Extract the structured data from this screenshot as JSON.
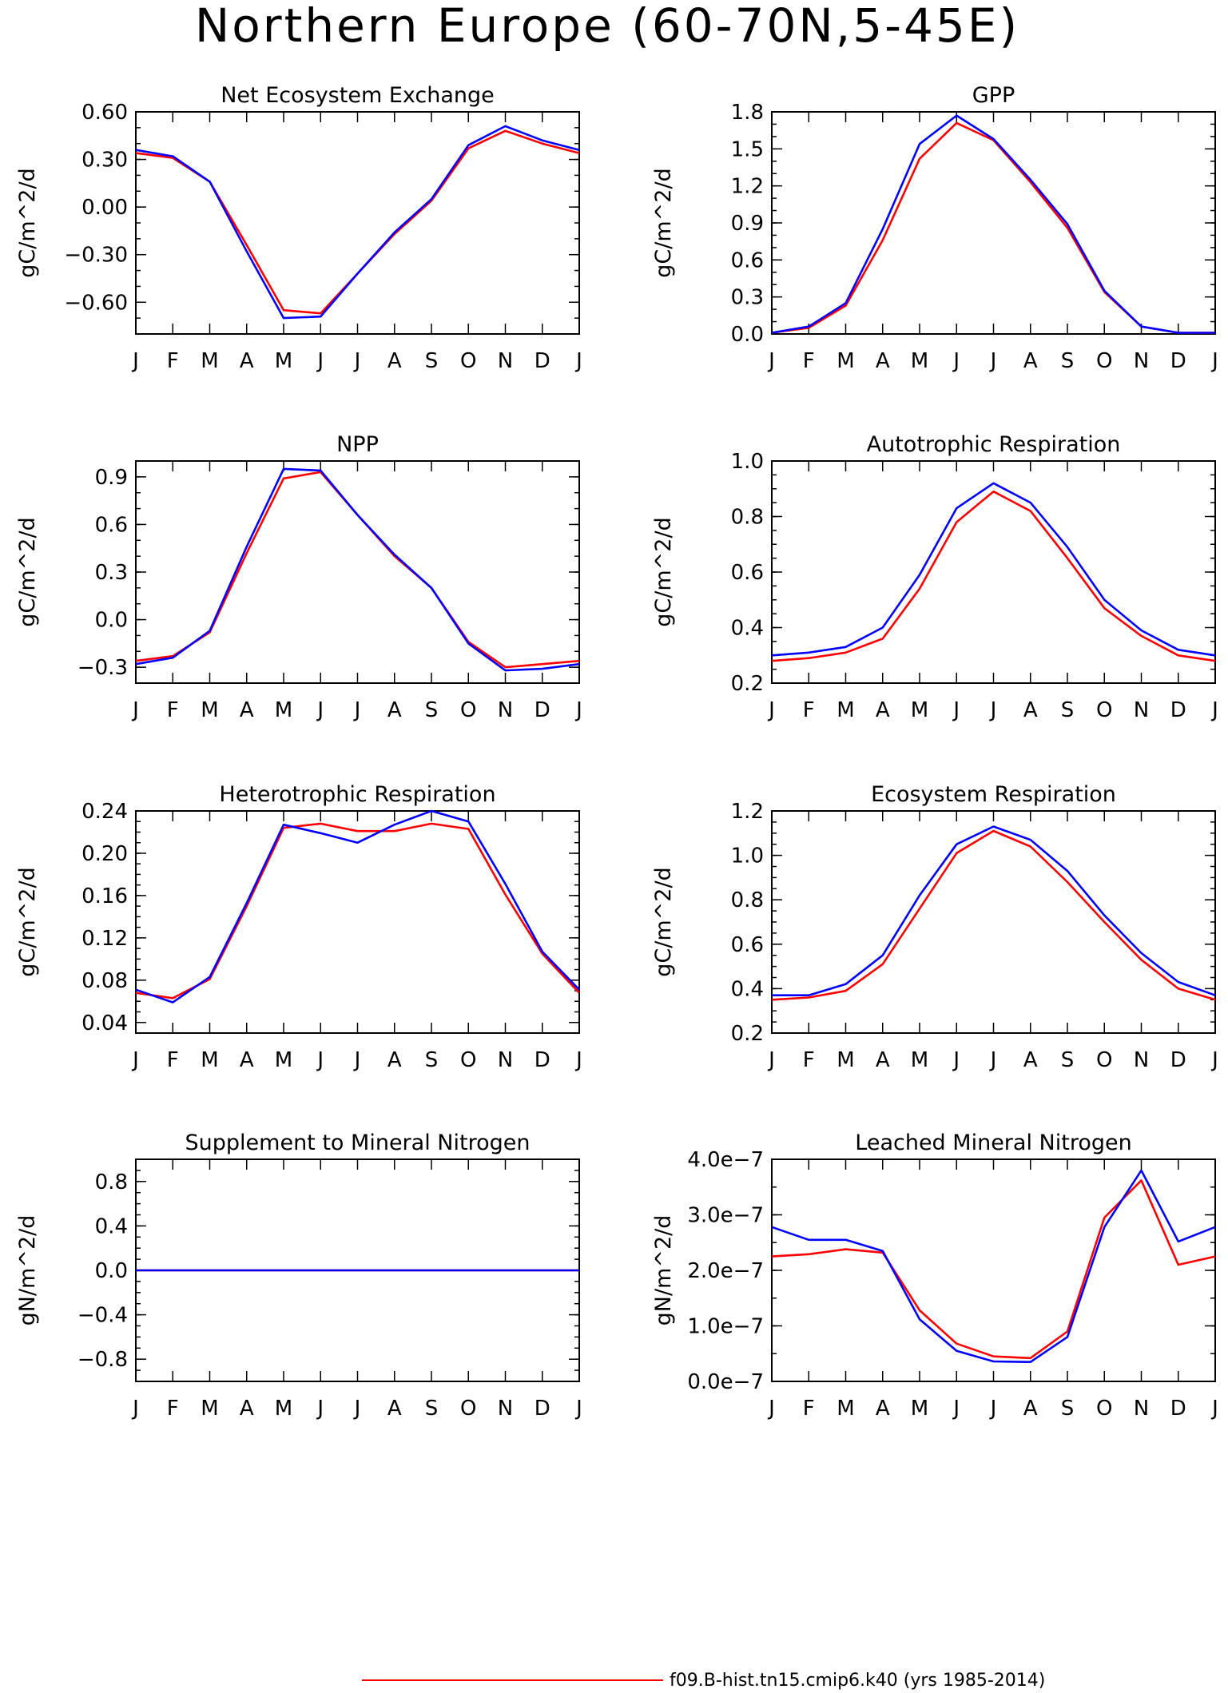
{
  "page_title": "Northern Europe (60-70N,5-45E)",
  "legend": {
    "red_label": "f09.B-hist.tn15.cmip6.k40 (yrs 1985-2014)",
    "red_color": "#ff0000",
    "blue_color": "#0000ff"
  },
  "chart_data": [
    {
      "type": "line",
      "title": "Net Ecosystem Exchange",
      "ylabel": "gC/m^2/d",
      "categories": [
        "J",
        "F",
        "M",
        "A",
        "M",
        "J",
        "J",
        "A",
        "S",
        "O",
        "N",
        "D",
        "J"
      ],
      "ylim": [
        -0.8,
        0.6
      ],
      "yticks": [
        -0.6,
        -0.3,
        0.0,
        0.3,
        0.6
      ],
      "yticklabels": [
        "−0.60",
        "−0.30",
        "0.00",
        "0.30",
        "0.60"
      ],
      "minor_step": 0.1,
      "series": [
        {
          "color": "#ff0000",
          "values": [
            0.34,
            0.31,
            0.16,
            -0.24,
            -0.65,
            -0.67,
            -0.42,
            -0.17,
            0.04,
            0.37,
            0.48,
            0.4,
            0.34
          ]
        },
        {
          "color": "#0000ff",
          "values": [
            0.36,
            0.32,
            0.16,
            -0.28,
            -0.7,
            -0.69,
            -0.42,
            -0.16,
            0.05,
            0.39,
            0.51,
            0.42,
            0.36
          ]
        }
      ]
    },
    {
      "type": "line",
      "title": "GPP",
      "ylabel": "gC/m^2/d",
      "categories": [
        "J",
        "F",
        "M",
        "A",
        "M",
        "J",
        "J",
        "A",
        "S",
        "O",
        "N",
        "D",
        "J"
      ],
      "ylim": [
        0.0,
        1.8
      ],
      "yticks": [
        0.0,
        0.3,
        0.6,
        0.9,
        1.2,
        1.5,
        1.8
      ],
      "yticklabels": [
        "0.0",
        "0.3",
        "0.6",
        "0.9",
        "1.2",
        "1.5",
        "1.8"
      ],
      "minor_step": 0.1,
      "series": [
        {
          "color": "#ff0000",
          "values": [
            0.01,
            0.05,
            0.23,
            0.76,
            1.42,
            1.71,
            1.57,
            1.23,
            0.86,
            0.34,
            0.06,
            0.01,
            0.01
          ]
        },
        {
          "color": "#0000ff",
          "values": [
            0.01,
            0.06,
            0.25,
            0.85,
            1.54,
            1.77,
            1.58,
            1.25,
            0.89,
            0.35,
            0.06,
            0.01,
            0.01
          ]
        }
      ]
    },
    {
      "type": "line",
      "title": "NPP",
      "ylabel": "gC/m^2/d",
      "categories": [
        "J",
        "F",
        "M",
        "A",
        "M",
        "J",
        "J",
        "A",
        "S",
        "O",
        "N",
        "D",
        "J"
      ],
      "ylim": [
        -0.4,
        1.0
      ],
      "yticks": [
        -0.3,
        0.0,
        0.3,
        0.6,
        0.9
      ],
      "yticklabels": [
        "−0.3",
        "0.0",
        "0.3",
        "0.6",
        "0.9"
      ],
      "minor_step": 0.1,
      "series": [
        {
          "color": "#ff0000",
          "values": [
            -0.26,
            -0.23,
            -0.08,
            0.42,
            0.89,
            0.93,
            0.66,
            0.4,
            0.2,
            -0.14,
            -0.3,
            -0.28,
            -0.26
          ]
        },
        {
          "color": "#0000ff",
          "values": [
            -0.28,
            -0.24,
            -0.07,
            0.46,
            0.95,
            0.94,
            0.66,
            0.41,
            0.2,
            -0.15,
            -0.32,
            -0.31,
            -0.28
          ]
        }
      ]
    },
    {
      "type": "line",
      "title": "Autotrophic Respiration",
      "ylabel": "gC/m^2/d",
      "categories": [
        "J",
        "F",
        "M",
        "A",
        "M",
        "J",
        "J",
        "A",
        "S",
        "O",
        "N",
        "D",
        "J"
      ],
      "ylim": [
        0.2,
        1.0
      ],
      "yticks": [
        0.2,
        0.4,
        0.6,
        0.8,
        1.0
      ],
      "yticklabels": [
        "0.2",
        "0.4",
        "0.6",
        "0.8",
        "1.0"
      ],
      "minor_step": 0.05,
      "series": [
        {
          "color": "#ff0000",
          "values": [
            0.28,
            0.29,
            0.31,
            0.36,
            0.54,
            0.78,
            0.89,
            0.82,
            0.65,
            0.47,
            0.37,
            0.3,
            0.28
          ]
        },
        {
          "color": "#0000ff",
          "values": [
            0.3,
            0.31,
            0.33,
            0.4,
            0.59,
            0.83,
            0.92,
            0.85,
            0.69,
            0.5,
            0.39,
            0.32,
            0.3
          ]
        }
      ]
    },
    {
      "type": "line",
      "title": "Heterotrophic Respiration",
      "ylabel": "gC/m^2/d",
      "categories": [
        "J",
        "F",
        "M",
        "A",
        "M",
        "J",
        "J",
        "A",
        "S",
        "O",
        "N",
        "D",
        "J"
      ],
      "ylim": [
        0.03,
        0.24
      ],
      "yticks": [
        0.04,
        0.08,
        0.12,
        0.16,
        0.2,
        0.24
      ],
      "yticklabels": [
        "0.04",
        "0.08",
        "0.12",
        "0.16",
        "0.20",
        "0.24"
      ],
      "minor_step": 0.01,
      "series": [
        {
          "color": "#ff0000",
          "values": [
            0.068,
            0.063,
            0.081,
            0.15,
            0.224,
            0.228,
            0.221,
            0.221,
            0.228,
            0.223,
            0.161,
            0.105,
            0.068
          ]
        },
        {
          "color": "#0000ff",
          "values": [
            0.071,
            0.059,
            0.083,
            0.153,
            0.227,
            0.219,
            0.21,
            0.227,
            0.24,
            0.23,
            0.171,
            0.107,
            0.071
          ]
        }
      ]
    },
    {
      "type": "line",
      "title": "Ecosystem Respiration",
      "ylabel": "gC/m^2/d",
      "categories": [
        "J",
        "F",
        "M",
        "A",
        "M",
        "J",
        "J",
        "A",
        "S",
        "O",
        "N",
        "D",
        "J"
      ],
      "ylim": [
        0.2,
        1.2
      ],
      "yticks": [
        0.2,
        0.4,
        0.6,
        0.8,
        1.0,
        1.2
      ],
      "yticklabels": [
        "0.2",
        "0.4",
        "0.6",
        "0.8",
        "1.0",
        "1.2"
      ],
      "minor_step": 0.05,
      "series": [
        {
          "color": "#ff0000",
          "values": [
            0.35,
            0.36,
            0.39,
            0.51,
            0.76,
            1.01,
            1.11,
            1.04,
            0.88,
            0.7,
            0.53,
            0.4,
            0.35
          ]
        },
        {
          "color": "#0000ff",
          "values": [
            0.37,
            0.37,
            0.42,
            0.55,
            0.82,
            1.05,
            1.13,
            1.07,
            0.93,
            0.73,
            0.56,
            0.43,
            0.37
          ]
        }
      ]
    },
    {
      "type": "line",
      "title": "Supplement to Mineral Nitrogen",
      "ylabel": "gN/m^2/d",
      "categories": [
        "J",
        "F",
        "M",
        "A",
        "M",
        "J",
        "J",
        "A",
        "S",
        "O",
        "N",
        "D",
        "J"
      ],
      "ylim": [
        -1.0,
        1.0
      ],
      "yticks": [
        -0.8,
        -0.4,
        0.0,
        0.4,
        0.8
      ],
      "yticklabels": [
        "−0.8",
        "−0.4",
        "0.0",
        "0.4",
        "0.8"
      ],
      "minor_step": 0.1,
      "series": [
        {
          "color": "#ff0000",
          "values": [
            0,
            0,
            0,
            0,
            0,
            0,
            0,
            0,
            0,
            0,
            0,
            0,
            0
          ]
        },
        {
          "color": "#0000ff",
          "values": [
            0,
            0,
            0,
            0,
            0,
            0,
            0,
            0,
            0,
            0,
            0,
            0,
            0
          ]
        }
      ]
    },
    {
      "type": "line",
      "title": "Leached Mineral Nitrogen",
      "ylabel": "gN/m^2/d",
      "categories": [
        "J",
        "F",
        "M",
        "A",
        "M",
        "J",
        "J",
        "A",
        "S",
        "O",
        "N",
        "D",
        "J"
      ],
      "ylim": [
        0.0,
        4e-07
      ],
      "yticks": [
        0.0,
        1e-07,
        2e-07,
        3e-07,
        4e-07
      ],
      "yticklabels": [
        "0.0e−7",
        "1.0e−7",
        "2.0e−7",
        "3.0e−7",
        "4.0e−7"
      ],
      "minor_step": 5e-08,
      "series": [
        {
          "color": "#ff0000",
          "values": [
            2.25e-07,
            2.29e-07,
            2.38e-07,
            2.32e-07,
            1.28e-07,
            6.8e-08,
            4.5e-08,
            4.2e-08,
            9e-08,
            2.95e-07,
            3.62e-07,
            2.1e-07,
            2.25e-07
          ]
        },
        {
          "color": "#0000ff",
          "values": [
            2.78e-07,
            2.55e-07,
            2.55e-07,
            2.35e-07,
            1.12e-07,
            5.5e-08,
            3.6e-08,
            3.5e-08,
            8e-08,
            2.78e-07,
            3.8e-07,
            2.52e-07,
            2.78e-07
          ]
        }
      ]
    }
  ]
}
